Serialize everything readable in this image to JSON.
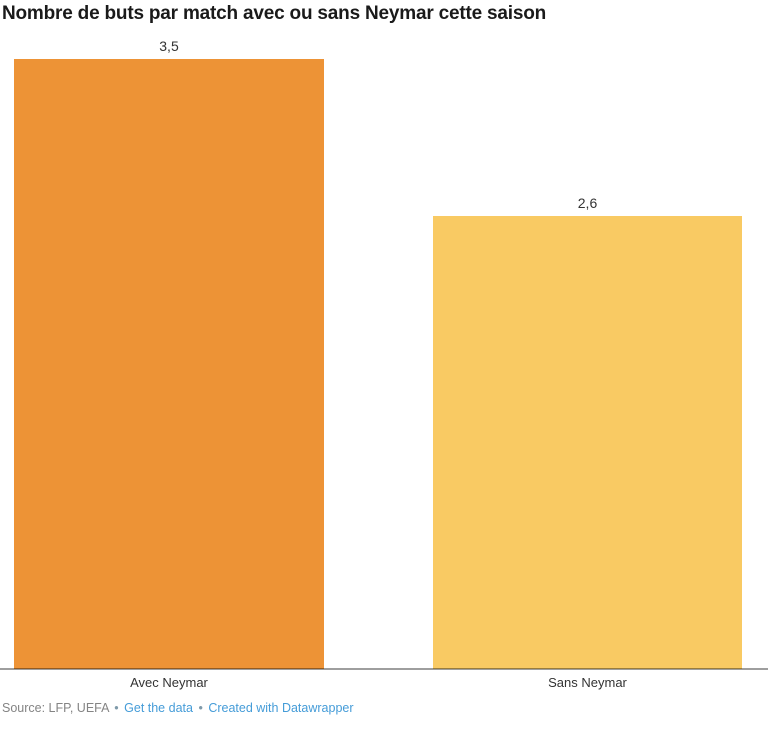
{
  "title": "Nombre de buts par match avec ou sans Neymar cette saison",
  "chart_data": {
    "type": "bar",
    "title": "Nombre de buts par match avec ou sans Neymar cette saison",
    "categories": [
      "Avec Neymar",
      "Sans Neymar"
    ],
    "values": [
      3.5,
      2.6
    ],
    "value_labels": [
      "3,5",
      "2,6"
    ],
    "xlabel": "",
    "ylabel": "",
    "ylim": [
      0,
      3.5
    ],
    "grid": false,
    "legend": false,
    "bar_colors": [
      "#ED9336",
      "#F9CA63"
    ],
    "axis_line_color": "#9E9E9E",
    "label_color": "#333333"
  },
  "footer": {
    "source": "Source: LFP, UEFA",
    "separator": "•",
    "get_data_label": "Get the data",
    "credit_label": "Created with Datawrapper",
    "link_color": "#459CD8"
  }
}
